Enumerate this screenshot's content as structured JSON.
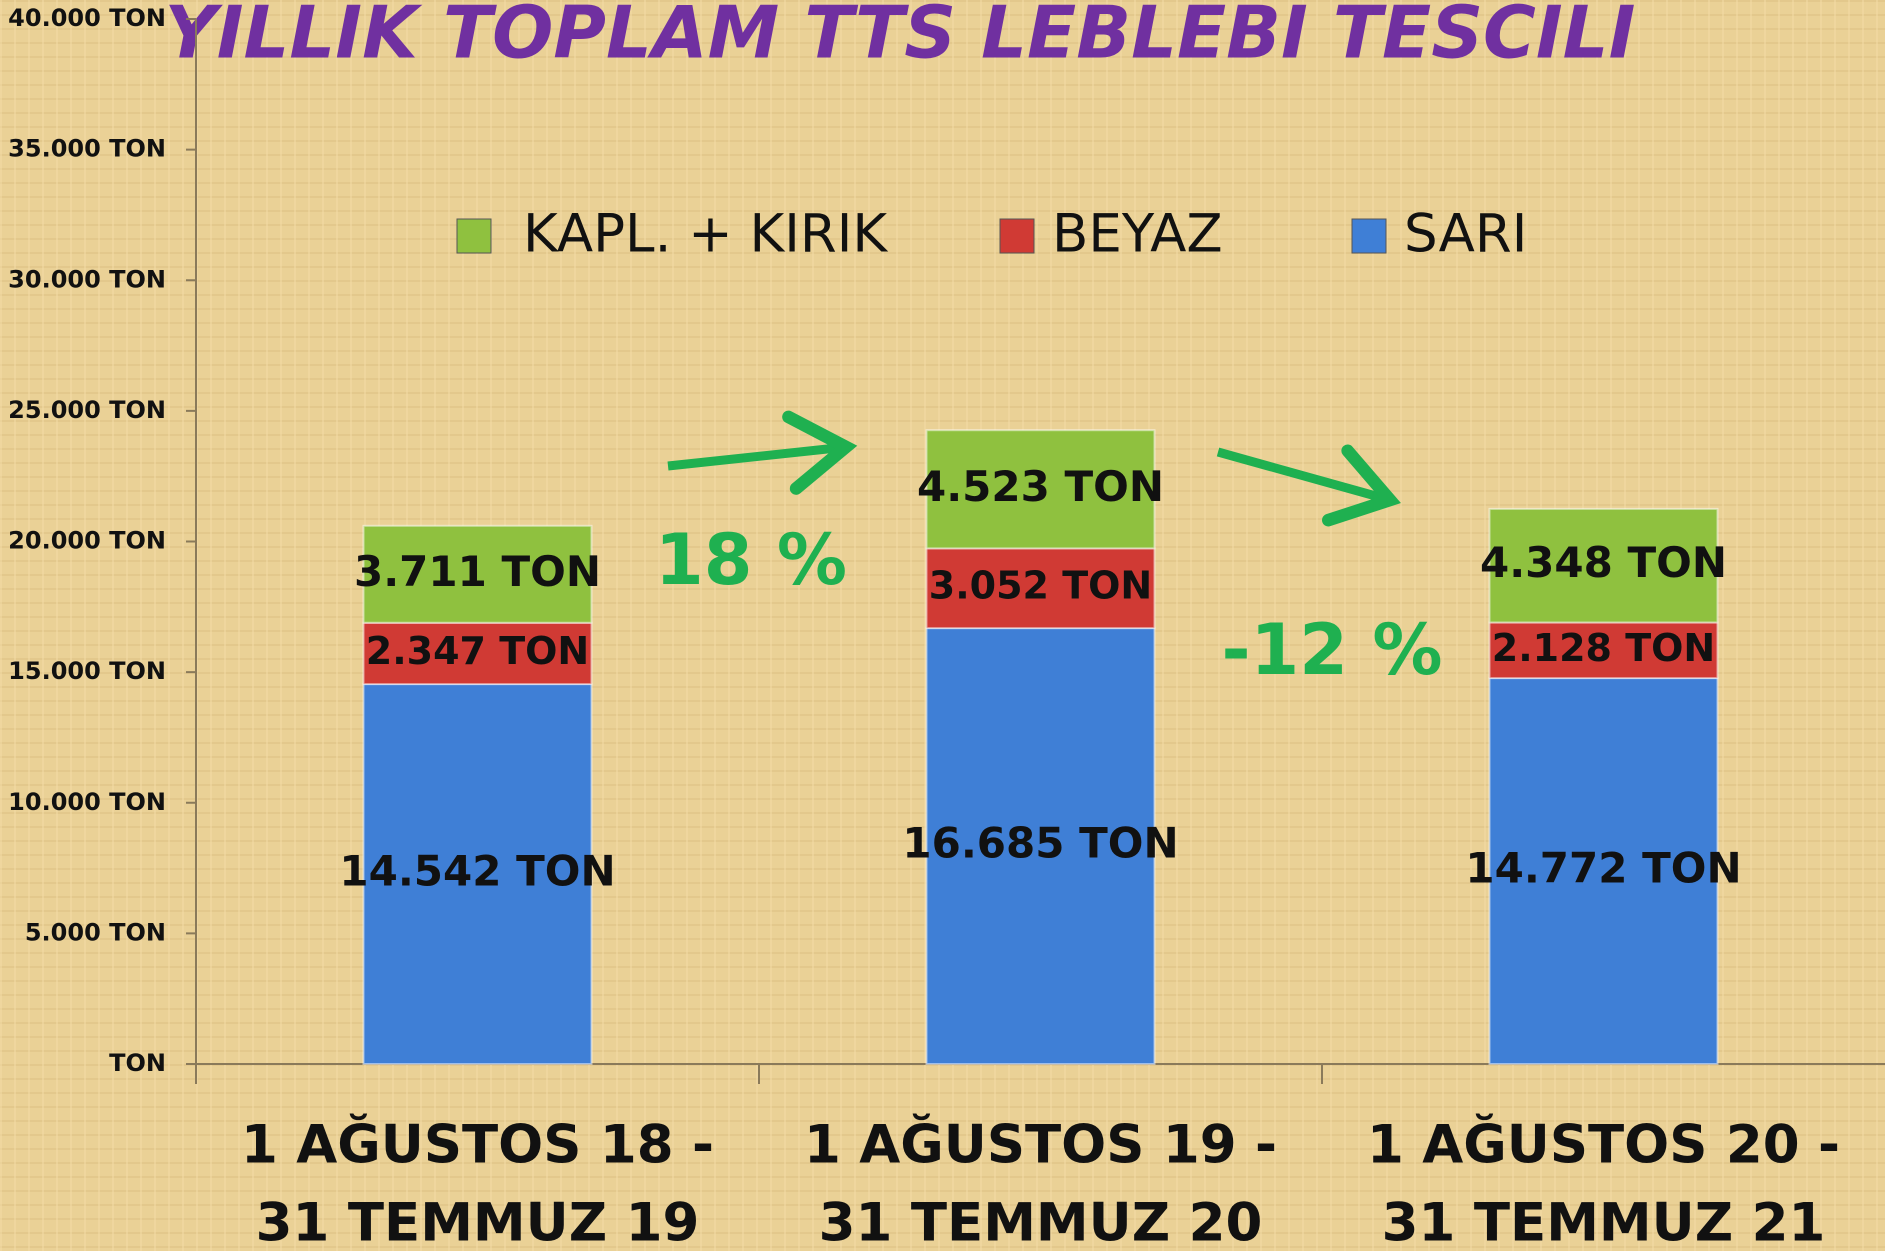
{
  "chart_data": {
    "type": "stacked_bar",
    "title": "YILLIK TOPLAM TTS LEBLEBİ TESCİLİ",
    "categories": [
      [
        "1 AĞUSTOS 18 -",
        "31 TEMMUZ 19"
      ],
      [
        "1 AĞUSTOS 19 -",
        "31 TEMMUZ 20"
      ],
      [
        "1 AĞUSTOS 20 -",
        "31 TEMMUZ 21"
      ]
    ],
    "series": [
      {
        "name": "SARI",
        "color": "#3f7fd6",
        "values": [
          14542,
          16685,
          14772
        ],
        "value_labels": [
          "14.542 TON",
          "16.685 TON",
          "14.772 TON"
        ]
      },
      {
        "name": "BEYAZ",
        "color": "#d03a34",
        "values": [
          2347,
          3052,
          2128
        ],
        "value_labels": [
          "2.347 TON",
          "3.052 TON",
          "2.128 TON"
        ]
      },
      {
        "name": "KAPL. + KIRIK",
        "color": "#8fc13f",
        "values": [
          3711,
          4523,
          4348
        ],
        "value_labels": [
          "3.711 TON",
          "4.523 TON",
          "4.348 TON"
        ]
      }
    ],
    "ylim": [
      0,
      40000
    ],
    "yticks": [
      {
        "value": 0,
        "label": "TON"
      },
      {
        "value": 5000,
        "label": "5.000 TON"
      },
      {
        "value": 10000,
        "label": "10.000 TON"
      },
      {
        "value": 15000,
        "label": "15.000 TON"
      },
      {
        "value": 20000,
        "label": "20.000 TON"
      },
      {
        "value": 25000,
        "label": "25.000 TON"
      },
      {
        "value": 30000,
        "label": "30.000 TON"
      },
      {
        "value": 35000,
        "label": "35.000 TON"
      },
      {
        "value": 40000,
        "label": "40.000 TON"
      }
    ],
    "legend": "top",
    "annotations": [
      "18 %",
      "-12 %"
    ]
  }
}
